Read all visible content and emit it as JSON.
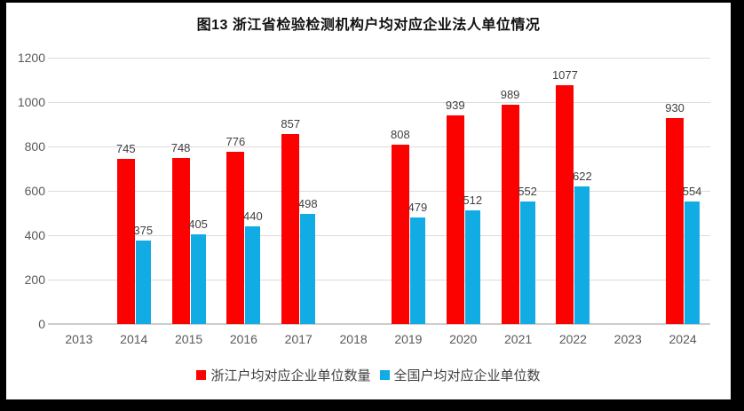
{
  "chart_data": {
    "type": "bar",
    "title": "图13 浙江省检验检测机构户均对应企业法人单位情况",
    "categories": [
      "2013",
      "2014",
      "2015",
      "2016",
      "2017",
      "2018",
      "2019",
      "2020",
      "2021",
      "2022",
      "2023",
      "2024"
    ],
    "series": [
      {
        "key": "zhejiang",
        "name": "浙江户均对应企业单位数量",
        "color": "#FB0200",
        "values": [
          null,
          745,
          748,
          776,
          857,
          null,
          808,
          939,
          989,
          1077,
          null,
          930
        ]
      },
      {
        "key": "national",
        "name": "全国户均对应企业单位数",
        "color": "#12ACE5",
        "values": [
          null,
          375,
          405,
          440,
          498,
          null,
          479,
          512,
          552,
          622,
          null,
          554
        ]
      }
    ],
    "xlabel": "",
    "ylabel": "",
    "ylim": [
      0,
      1200
    ],
    "yticks": [
      0,
      200,
      400,
      600,
      800,
      1000,
      1200
    ],
    "grid": true,
    "legend_position": "bottom",
    "colors": {
      "frame": "#000000",
      "background": "#FFFFFF",
      "gridline": "#DCDCDC",
      "axisline": "#CCCCCC",
      "tick_text": "#595959",
      "data_label_text": "#3F3F3F",
      "legend_text": "#404040",
      "title_text": "#111111"
    }
  }
}
